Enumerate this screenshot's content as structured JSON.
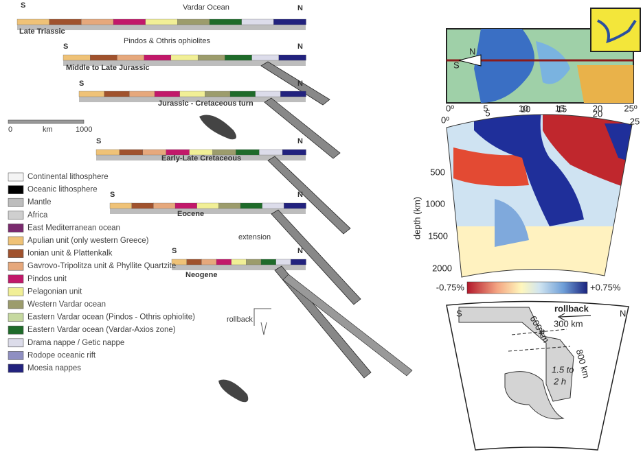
{
  "left": {
    "title": "Vardar Ocean",
    "sections": [
      {
        "label": "Late Triassic",
        "s": "S",
        "n": "N"
      },
      {
        "label": "Middle to Late Jurassic",
        "s": "S",
        "n": "N"
      },
      {
        "label": "Jurassic - Cretaceous turn",
        "s": "S",
        "n": "N"
      },
      {
        "label": "Early-Late Cretaceous",
        "s": "S",
        "n": "N"
      },
      {
        "label": "Eocene",
        "s": "S",
        "n": "N"
      },
      {
        "label": "Neogene",
        "s": "S",
        "n": "N"
      }
    ],
    "ophiolites": "Pindos & Othris ophiolites",
    "extension": "extension",
    "rollback": "rollback",
    "scale": [
      "0",
      "km",
      "1000"
    ],
    "legend": [
      {
        "label": "Continental lithosphere",
        "color": "#f4f4f4"
      },
      {
        "label": "Oceanic lithosphere",
        "color": "#000000"
      },
      {
        "label": "Mantle",
        "color": "#bdbdbd"
      },
      {
        "label": "Africa",
        "color": "#cfcfcf"
      },
      {
        "label": "East Mediterranean ocean",
        "color": "#7a2a6e"
      },
      {
        "label": "Apulian unit (only western Greece)",
        "color": "#efc277"
      },
      {
        "label": "Ionian unit & Plattenkalk",
        "color": "#a0522d"
      },
      {
        "label": "Gavrovo-Tripolitza unit & Phyllite Quartzite",
        "color": "#e6a87c"
      },
      {
        "label": "Pindos unit",
        "color": "#c2186a"
      },
      {
        "label": "Pelagonian unit",
        "color": "#f1ef96"
      },
      {
        "label": "Western Vardar ocean",
        "color": "#9c9c6c"
      },
      {
        "label": "Eastern Vardar ocean (Pindos - Othris ophiolite)",
        "color": "#c6d9a0"
      },
      {
        "label": "Eastern Vardar ocean (Vardar-Axios zone)",
        "color": "#1f6b2a"
      },
      {
        "label": "Drama nappe / Getic nappe",
        "color": "#dcdcea"
      },
      {
        "label": "Rodope oceanic rift",
        "color": "#8f8fc2"
      },
      {
        "label": "Moesia nappes",
        "color": "#22227e"
      }
    ]
  },
  "right": {
    "map": {
      "n": "N",
      "s": "S",
      "ticks": [
        "0º",
        "5",
        "10",
        "15",
        "20",
        "25º"
      ]
    },
    "tomography": {
      "ticks": [
        "0º",
        "5",
        "10",
        "15",
        "20",
        "25"
      ],
      "depth_ticks": [
        "500",
        "1000",
        "1500",
        "2000"
      ],
      "depth_label": "depth (km)",
      "colorbar": [
        "-0.75%",
        "+0.75%"
      ]
    },
    "schematic": {
      "s": "S",
      "n": "N",
      "rollback": "rollback",
      "d600": "600 km",
      "d300": "300 km",
      "h": "h",
      "d800": "800 km",
      "thick": [
        "1.5 to",
        "2 h"
      ]
    }
  }
}
